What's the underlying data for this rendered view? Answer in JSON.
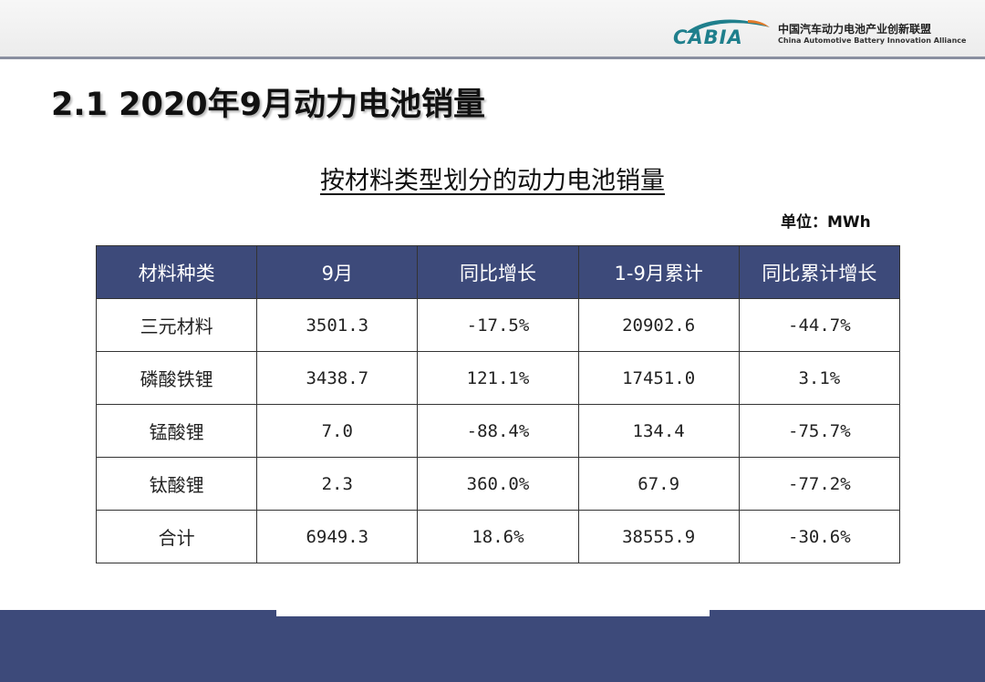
{
  "header": {
    "logo_text": "CABIA",
    "org_name_cn": "中国汽车动力电池产业创新联盟",
    "org_name_en": "China Automotive Battery Innovation Alliance",
    "accent_color": "#1f7f8c"
  },
  "slide": {
    "title": "2.1 2020年9月动力电池销量"
  },
  "table": {
    "title": "按材料类型划分的动力电池销量",
    "unit": "单位：MWh",
    "header_color": "#3d4a7a",
    "columns": [
      "材料种类",
      "9月",
      "同比增长",
      "1-9月累计",
      "同比累计增长"
    ],
    "rows": [
      [
        "三元材料",
        "3501.3",
        "-17.5%",
        "20902.6",
        "-44.7%"
      ],
      [
        "磷酸铁锂",
        "3438.7",
        "121.1%",
        "17451.0",
        "3.1%"
      ],
      [
        "锰酸锂",
        "7.0",
        "-88.4%",
        "134.4",
        "-75.7%"
      ],
      [
        "钛酸锂",
        "2.3",
        "360.0%",
        "67.9",
        "-77.2%"
      ],
      [
        "合计",
        "6949.3",
        "18.6%",
        "38555.9",
        "-30.6%"
      ]
    ]
  }
}
